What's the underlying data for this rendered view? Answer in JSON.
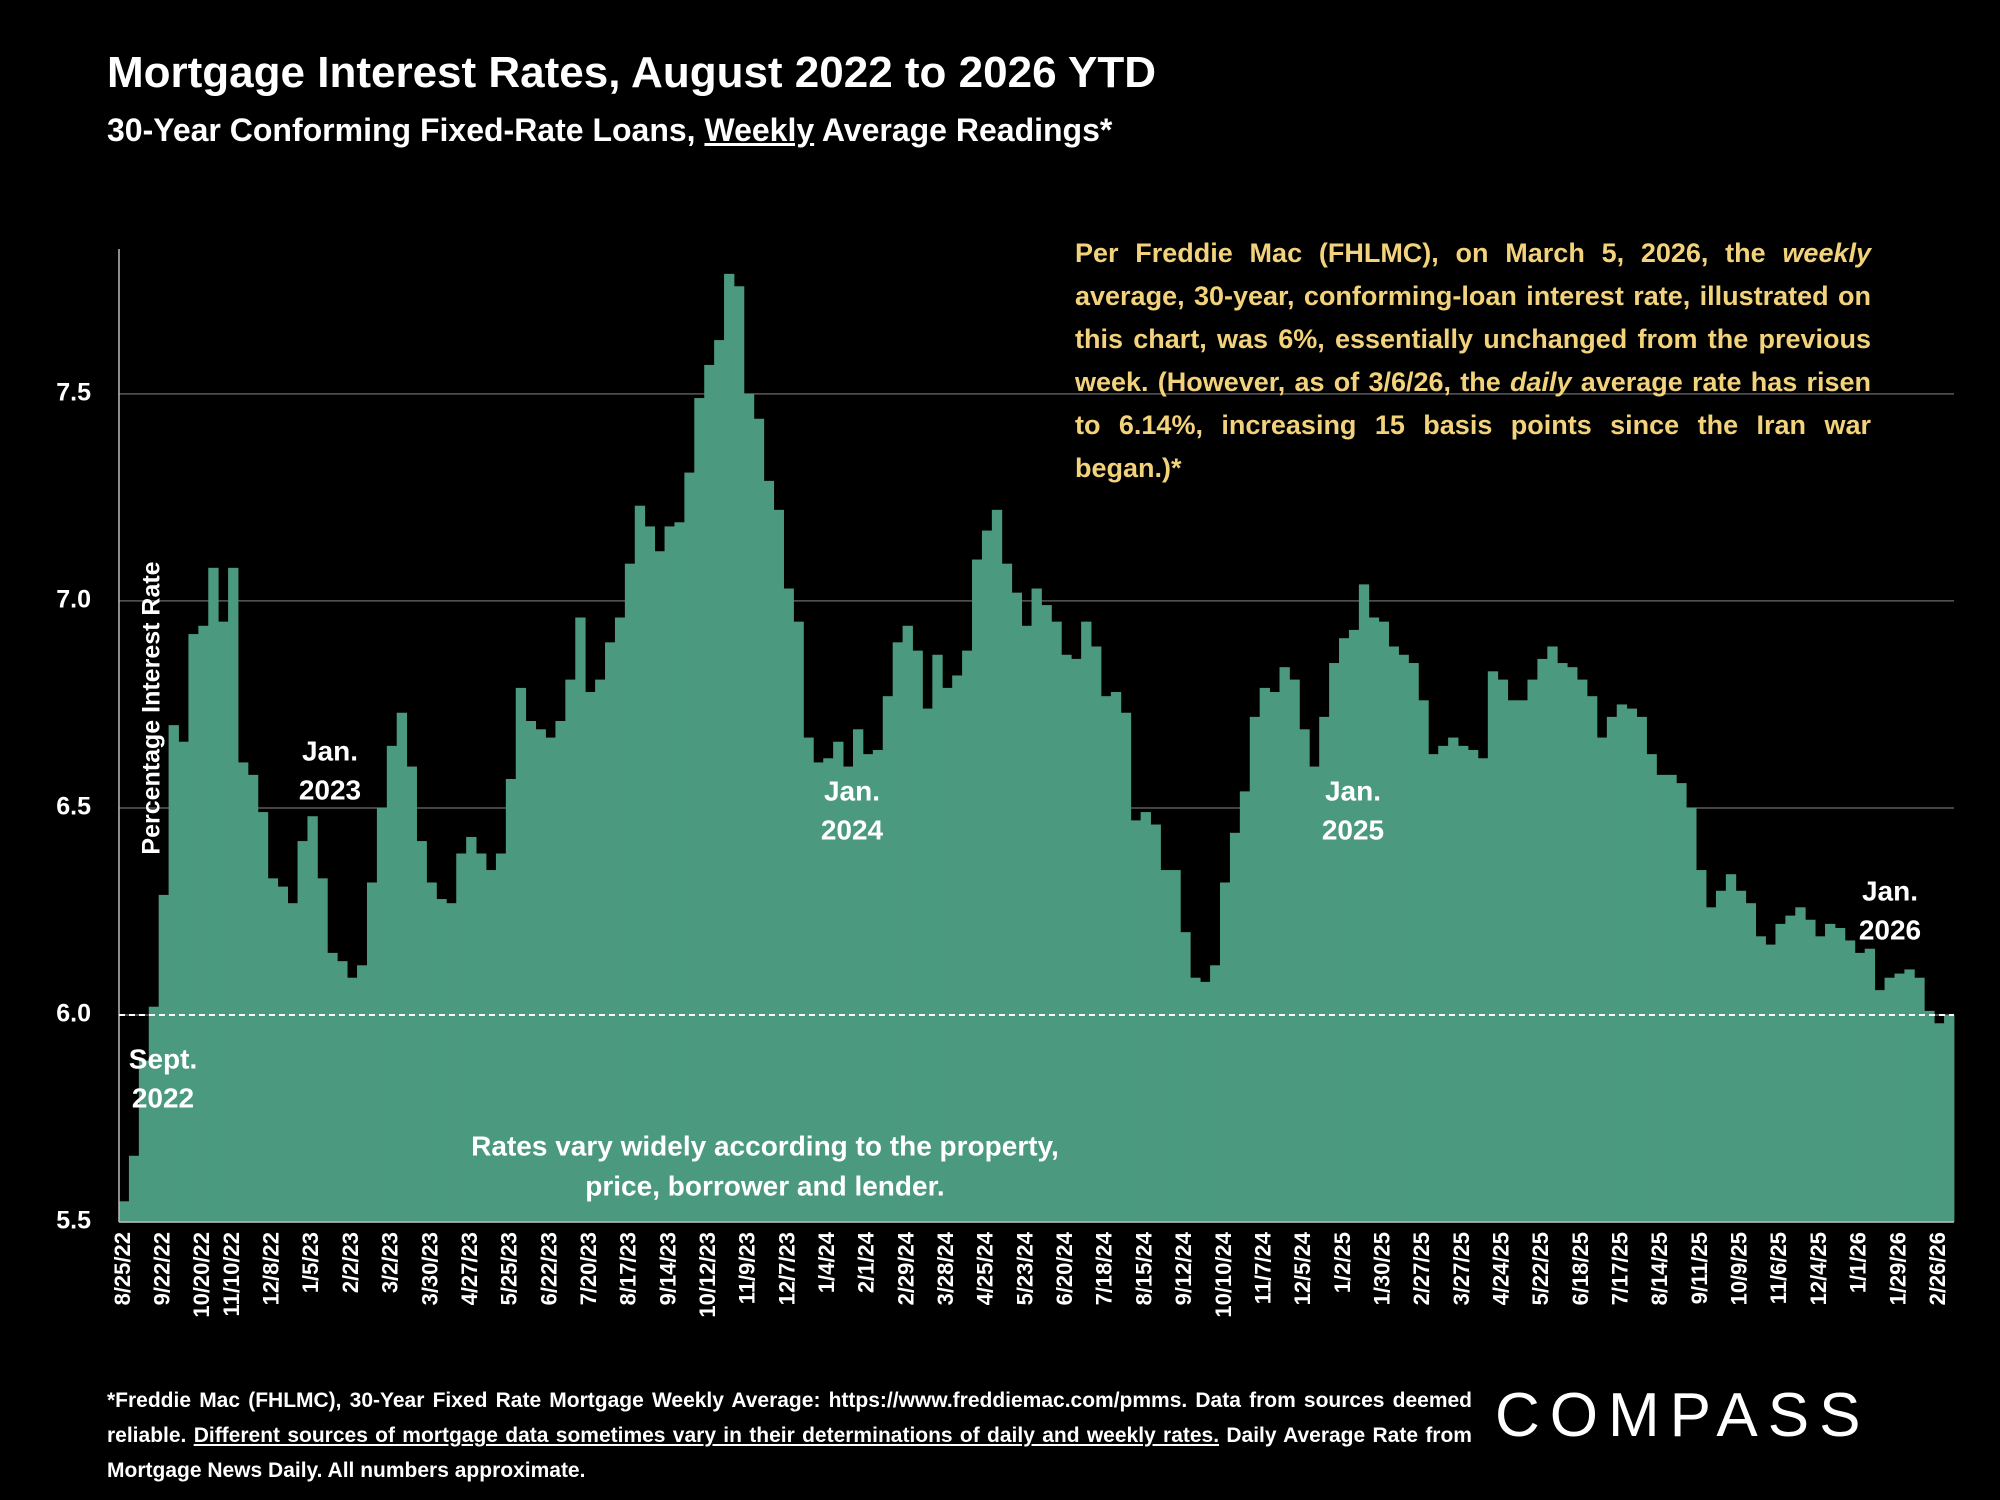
{
  "chart_data": {
    "type": "bar",
    "title": "Mortgage Interest Rates, August 2022 to 2026 YTD",
    "subtitle": [
      "30-Year Conforming Fixed-Rate Loans, ",
      "Weekly",
      " Average Readings*"
    ],
    "y_label": "Percentage Interest  Rate",
    "note": [
      "Per Freddie Mac (FHLMC), on March 5, 2026, the ",
      "weekly",
      " average, 30-year, conforming-loan interest rate, illustrated on this chart, was 6%, essentially unchanged from the previous week. (However, as of 3/6/26, the ",
      "daily",
      " average rate has risen to 6.14%, increasing 15 basis points since the Iran war began.)*"
    ],
    "annotations": [
      [
        "Sept.",
        "2022"
      ],
      [
        "Jan.",
        "2023"
      ],
      [
        "Jan.",
        "2024"
      ],
      [
        "Jan.",
        "2025"
      ],
      [
        "Jan.",
        "2026"
      ]
    ],
    "chart_note": [
      "Rates vary widely according to the property,",
      "price, borrower and lender."
    ],
    "footnote": [
      "*Freddie Mac (FHLMC), 30-Year Fixed Rate Mortgage Weekly Average:  https://www.freddiemac.com/pmms. Data from sources deemed reliable. ",
      "Different sources of mortgage data sometimes vary in their determinations of daily and weekly rates.",
      " Daily Average Rate from Mortgage News Daily. All numbers approximate."
    ],
    "logo": "COMPASS",
    "color": "#4b9a80",
    "grid": true,
    "reference_line": 6,
    "ylim": [
      5.5,
      7.85
    ],
    "yticks": [
      5.5,
      {
        "value": 6,
        "label": "6.0"
      },
      6.5,
      {
        "value": 7,
        "label": "7.0"
      },
      7.5
    ],
    "categories": [
      "8/25/22",
      null,
      null,
      null,
      "9/22/22",
      null,
      null,
      null,
      "10/20/22",
      null,
      null,
      "11/10/22",
      null,
      null,
      null,
      "12/8/22",
      null,
      null,
      null,
      "1/5/23",
      null,
      null,
      null,
      "2/2/23",
      null,
      null,
      null,
      "3/2/23",
      null,
      null,
      null,
      "3/30/23",
      null,
      null,
      null,
      "4/27/23",
      null,
      null,
      null,
      "5/25/23",
      null,
      null,
      null,
      "6/22/23",
      null,
      null,
      null,
      "7/20/23",
      null,
      null,
      null,
      "8/17/23",
      null,
      null,
      null,
      "9/14/23",
      null,
      null,
      null,
      "10/12/23",
      null,
      null,
      null,
      "11/9/23",
      null,
      null,
      null,
      "12/7/23",
      null,
      null,
      null,
      "1/4/24",
      null,
      null,
      null,
      "2/1/24",
      null,
      null,
      null,
      "2/29/24",
      null,
      null,
      null,
      "3/28/24",
      null,
      null,
      null,
      "4/25/24",
      null,
      null,
      null,
      "5/23/24",
      null,
      null,
      null,
      "6/20/24",
      null,
      null,
      null,
      "7/18/24",
      null,
      null,
      null,
      "8/15/24",
      null,
      null,
      null,
      "9/12/24",
      null,
      null,
      null,
      "10/10/24",
      null,
      null,
      null,
      "11/7/24",
      null,
      null,
      null,
      "12/5/24",
      null,
      null,
      null,
      "1/2/25",
      null,
      null,
      null,
      "1/30/25",
      null,
      null,
      null,
      "2/27/25",
      null,
      null,
      null,
      "3/27/25",
      null,
      null,
      null,
      "4/24/25",
      null,
      null,
      null,
      "5/22/25",
      null,
      null,
      null,
      "6/18/25",
      null,
      null,
      null,
      "7/17/25",
      null,
      null,
      null,
      "8/14/25",
      null,
      null,
      null,
      "9/11/25",
      null,
      null,
      null,
      "10/9/25",
      null,
      null,
      null,
      "11/6/25",
      null,
      null,
      null,
      "12/4/25",
      null,
      null,
      null,
      "1/1/26",
      null,
      null,
      null,
      "1/29/26",
      null,
      null,
      null,
      "2/26/26",
      null
    ],
    "values": [
      5.55,
      5.66,
      5.89,
      6.02,
      6.29,
      6.7,
      6.66,
      6.92,
      6.94,
      7.08,
      6.95,
      7.08,
      6.61,
      6.58,
      6.49,
      6.33,
      6.31,
      6.27,
      6.42,
      6.48,
      6.33,
      6.15,
      6.13,
      6.09,
      6.12,
      6.32,
      6.5,
      6.65,
      6.73,
      6.6,
      6.42,
      6.32,
      6.28,
      6.27,
      6.39,
      6.43,
      6.39,
      6.35,
      6.39,
      6.57,
      6.79,
      6.71,
      6.69,
      6.67,
      6.71,
      6.81,
      6.96,
      6.78,
      6.81,
      6.9,
      6.96,
      7.09,
      7.23,
      7.18,
      7.12,
      7.18,
      7.19,
      7.31,
      7.49,
      7.57,
      7.63,
      7.79,
      7.76,
      7.5,
      7.44,
      7.29,
      7.22,
      7.03,
      6.95,
      6.67,
      6.61,
      6.62,
      6.66,
      6.6,
      6.69,
      6.63,
      6.64,
      6.77,
      6.9,
      6.94,
      6.88,
      6.74,
      6.87,
      6.79,
      6.82,
      6.88,
      7.1,
      7.17,
      7.22,
      7.09,
      7.02,
      6.94,
      7.03,
      6.99,
      6.95,
      6.87,
      6.86,
      6.95,
      6.89,
      6.77,
      6.78,
      6.73,
      6.47,
      6.49,
      6.46,
      6.35,
      6.35,
      6.2,
      6.09,
      6.08,
      6.12,
      6.32,
      6.44,
      6.54,
      6.72,
      6.79,
      6.78,
      6.84,
      6.81,
      6.69,
      6.6,
      6.72,
      6.85,
      6.91,
      6.93,
      7.04,
      6.96,
      6.95,
      6.89,
      6.87,
      6.85,
      6.76,
      6.63,
      6.65,
      6.67,
      6.65,
      6.64,
      6.62,
      6.83,
      6.81,
      6.76,
      6.76,
      6.81,
      6.86,
      6.89,
      6.85,
      6.84,
      6.81,
      6.77,
      6.67,
      6.72,
      6.75,
      6.74,
      6.72,
      6.63,
      6.58,
      6.58,
      6.56,
      6.5,
      6.35,
      6.26,
      6.3,
      6.34,
      6.3,
      6.27,
      6.19,
      6.17,
      6.22,
      6.24,
      6.26,
      6.23,
      6.19,
      6.22,
      6.21,
      6.18,
      6.15,
      6.16,
      6.06,
      6.09,
      6.1,
      6.11,
      6.09,
      6.01,
      5.98,
      6.0
    ]
  }
}
